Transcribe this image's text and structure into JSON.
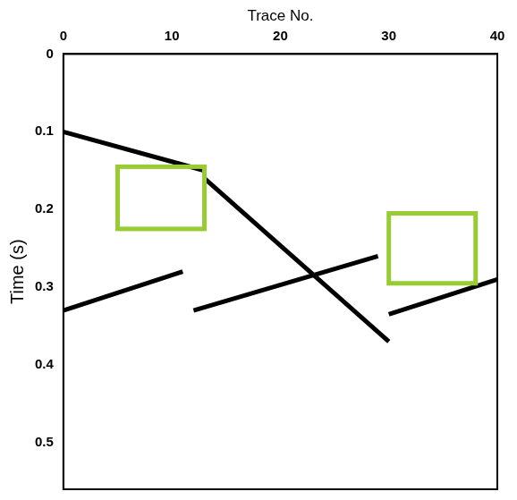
{
  "chart_data": {
    "type": "scatter",
    "x_label": "Trace No.",
    "y_label": "Time (s)",
    "xlim": [
      0,
      40
    ],
    "xticks": [
      0,
      10,
      20,
      30,
      40
    ],
    "ylim": [
      0,
      0.56
    ],
    "yticks": [
      0,
      0.1,
      0.2,
      0.3,
      0.4,
      0.5
    ],
    "grid": false,
    "series": [
      {
        "color": "#000000",
        "x": [
          0,
          13
        ],
        "values": [
          0.1,
          0.15
        ]
      },
      {
        "color": "#000000",
        "x": [
          13,
          30
        ],
        "values": [
          0.16,
          0.37
        ]
      },
      {
        "color": "#000000",
        "x": [
          0,
          11
        ],
        "values": [
          0.33,
          0.28
        ]
      },
      {
        "color": "#000000",
        "x": [
          12,
          29
        ],
        "values": [
          0.33,
          0.26
        ]
      },
      {
        "color": "#000000",
        "x": [
          30,
          40
        ],
        "values": [
          0.335,
          0.29
        ]
      }
    ],
    "boxes": [
      {
        "x": [
          5,
          13
        ],
        "y": [
          0.145,
          0.225
        ],
        "color": "#99cc33"
      },
      {
        "x": [
          30,
          38
        ],
        "y": [
          0.205,
          0.295
        ],
        "color": "#99cc33"
      }
    ]
  }
}
